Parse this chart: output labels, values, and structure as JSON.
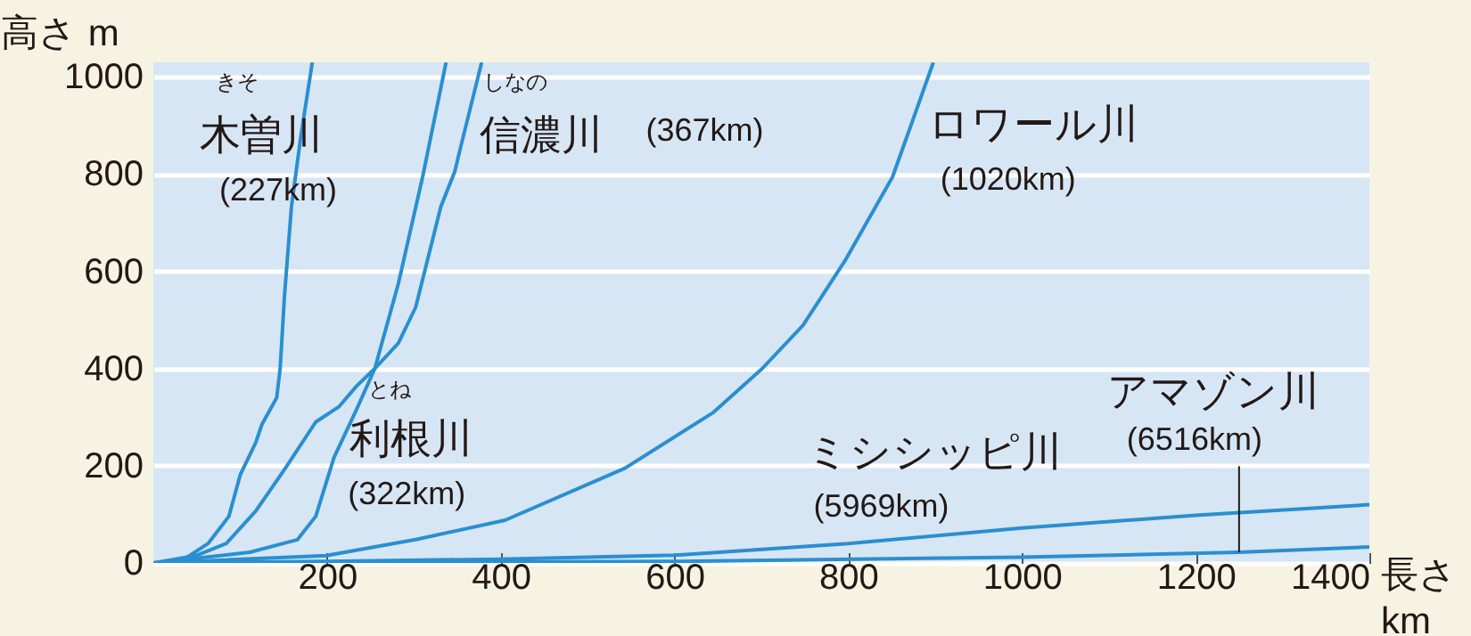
{
  "chart_data": {
    "type": "line",
    "xlabel": "長さ km",
    "ylabel": "高さ m",
    "xlim": [
      0,
      1400
    ],
    "xticks": [
      200,
      400,
      600,
      800,
      1000,
      1200,
      1400
    ],
    "ylim": [
      0,
      1030
    ],
    "yticks": [
      0,
      200,
      400,
      600,
      800,
      1000
    ],
    "grid": "y",
    "series": [
      {
        "name": "木曽川",
        "color": "#2a8fd0",
        "x": [
          0,
          29,
          63,
          87,
          100,
          118,
          125,
          142,
          146,
          151,
          159,
          170,
          183
        ],
        "values": [
          0,
          0,
          40,
          96,
          181,
          248,
          285,
          340,
          400,
          550,
          733,
          880,
          1030
        ]
      },
      {
        "name": "利根川",
        "color": "#2a8fd0",
        "x": [
          0,
          111,
          166,
          187,
          208,
          234,
          255,
          282,
          310,
          337
        ],
        "values": [
          0,
          22,
          48,
          96,
          217,
          316,
          400,
          574,
          794,
          1030
        ]
      },
      {
        "name": "信濃川",
        "color": "#2a8fd0",
        "x": [
          0,
          49,
          84,
          118,
          152,
          187,
          214,
          234,
          255,
          282,
          302,
          331,
          347,
          354,
          378
        ],
        "values": [
          0,
          15,
          40,
          107,
          195,
          290,
          322,
          364,
          400,
          452,
          526,
          733,
          805,
          857,
          1030
        ]
      },
      {
        "name": "ロワール川",
        "color": "#2a8fd0",
        "x": [
          0,
          199,
          302,
          405,
          543,
          645,
          701,
          748,
          796,
          851,
          898
        ],
        "values": [
          0,
          15,
          48,
          88,
          195,
          310,
          400,
          489,
          621,
          794,
          1030
        ]
      },
      {
        "name": "ミシシッピ川",
        "color": "#2a8fd0",
        "x": [
          0,
          200,
          400,
          600,
          800,
          1000,
          1200,
          1400
        ],
        "values": [
          0,
          3,
          8,
          16,
          40,
          72,
          98,
          120
        ]
      },
      {
        "name": "アマゾン川",
        "color": "#2a8fd0",
        "x": [
          0,
          600,
          1000,
          1250,
          1400
        ],
        "values": [
          0,
          3,
          12,
          22,
          33
        ]
      }
    ],
    "annotations": [
      "きそ",
      "(227km)",
      "とね",
      "(322km)",
      "しなの",
      "(367km)",
      "(1020km)",
      "(5969km)",
      {
        "text": "(6516km)",
        "x": 1250,
        "y": 22
      }
    ]
  }
}
